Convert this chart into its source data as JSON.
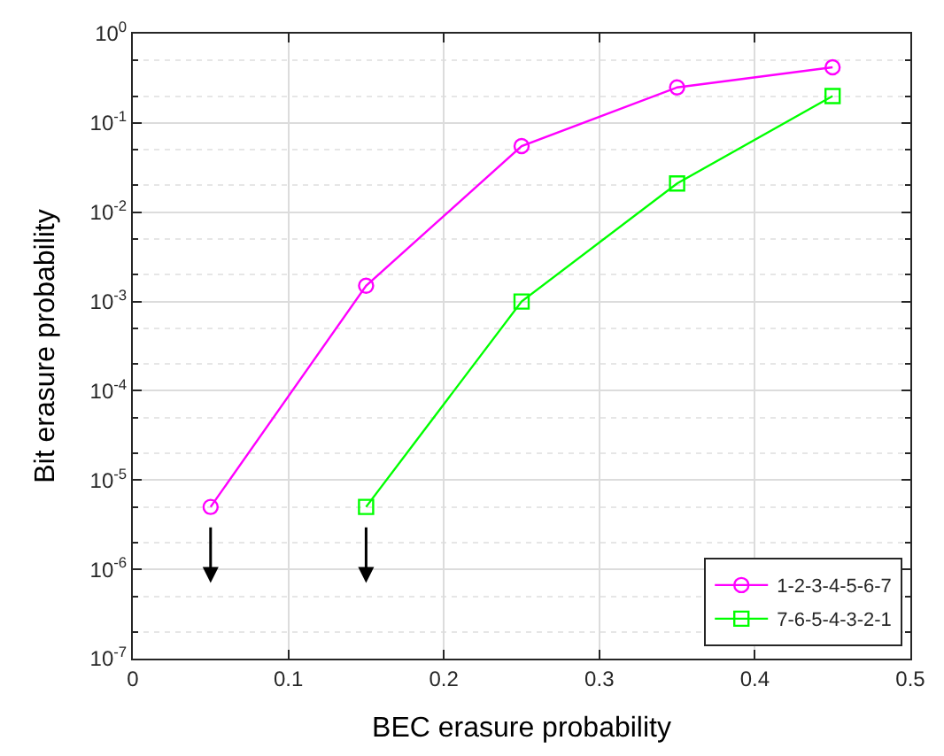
{
  "chart_data": {
    "type": "line",
    "xlabel": "BEC erasure probability",
    "ylabel": "Bit erasure probability",
    "x": [
      0.05,
      0.15,
      0.25,
      0.35,
      0.45
    ],
    "series": [
      {
        "name": "1-2-3-4-5-6-7",
        "color": "#ff00ff",
        "marker": "circle",
        "values": [
          5e-06,
          0.0015,
          0.055,
          0.25,
          0.42
        ]
      },
      {
        "name": "7-6-5-4-3-2-1",
        "color": "#00ff00",
        "marker": "square",
        "values": [
          null,
          5e-06,
          0.001,
          0.021,
          0.2
        ]
      }
    ],
    "log": "y",
    "grid": true,
    "legend": "bottom right",
    "xlim": [
      0,
      0.5
    ],
    "xticks": [
      0,
      0.1,
      0.2,
      0.3,
      0.4,
      0.5
    ],
    "ylim": [
      1e-07,
      1
    ],
    "yticks": [
      {
        "value": 1e-07,
        "label": "10$^{-7}$"
      },
      {
        "value": 1e-06,
        "label": "10$^{-6}$"
      },
      {
        "value": 1e-05,
        "label": "10$^{-5}$"
      },
      {
        "value": 0.0001,
        "label": "10$^{-4}$"
      },
      {
        "value": 0.001,
        "label": "10$^{-3}$"
      },
      {
        "value": 0.01,
        "label": "10$^{-2}$"
      },
      {
        "value": 0.1,
        "label": "10$^{-1}$"
      },
      {
        "value": 1,
        "label": "10$^{0}$"
      }
    ]
  }
}
